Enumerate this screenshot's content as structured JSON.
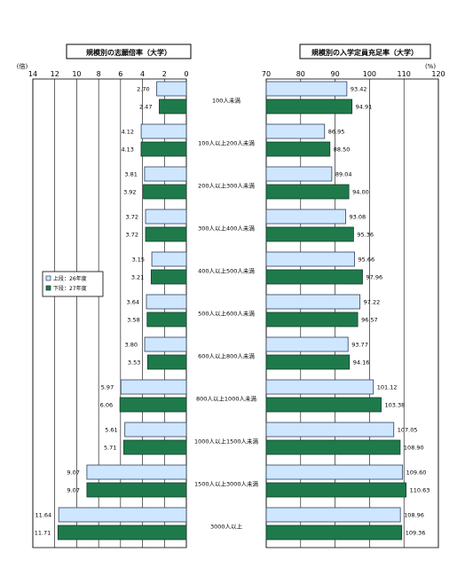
{
  "chart_data": [
    {
      "type": "bar",
      "title": "規模別の志願倍率（大学）",
      "unit_label": "(倍)",
      "orientation": "horizontal",
      "x_reversed": true,
      "xlim": [
        0,
        14
      ],
      "ticks": [
        14,
        12,
        10,
        8,
        6,
        4,
        2,
        0
      ],
      "categories": [
        "100人未満",
        "100人以上200人未満",
        "200人以上300人未満",
        "300人以上400人未満",
        "400人以上500人未満",
        "500人以上600人未満",
        "600人以上800人未満",
        "800人以上1000人未満",
        "1000人以上1500人未満",
        "1500人以上3000人未満",
        "3000人以上"
      ],
      "series": [
        {
          "name": "上段：26年度",
          "values": [
            2.7,
            4.12,
            3.81,
            3.72,
            3.15,
            3.64,
            3.8,
            5.97,
            5.61,
            9.07,
            11.64
          ]
        },
        {
          "name": "下段：27年度",
          "values": [
            2.47,
            4.13,
            3.92,
            3.72,
            3.21,
            3.58,
            3.53,
            6.06,
            5.71,
            9.07,
            11.71
          ]
        }
      ],
      "data_labels": [
        [
          "2.70",
          "4.12",
          "3.81",
          "3.72",
          "3.15",
          "3.64",
          "3.80",
          "5.97",
          "5.61",
          "9.07",
          "11.64"
        ],
        [
          "2.47",
          "4.13",
          "3.92",
          "3.72",
          "3.21",
          "3.58",
          "3.53",
          "6.06",
          "5.71",
          "9.07",
          "11.71"
        ]
      ],
      "legend_position": "left-middle"
    },
    {
      "type": "bar",
      "title": "規模別の入学定員充足率（大学）",
      "unit_label": "(%)",
      "orientation": "horizontal",
      "xlim": [
        70,
        120
      ],
      "ticks": [
        70,
        80,
        90,
        100,
        110,
        120
      ],
      "categories": [
        "100人未満",
        "100人以上200人未満",
        "200人以上300人未満",
        "300人以上400人未満",
        "400人以上500人未満",
        "500人以上600人未満",
        "600人以上800人未満",
        "800人以上1000人未満",
        "1000人以上1500人未満",
        "1500人以上3000人未満",
        "3000人以上"
      ],
      "series": [
        {
          "name": "上段：26年度",
          "values": [
            93.42,
            86.95,
            89.04,
            93.08,
            95.66,
            97.22,
            93.77,
            101.12,
            107.05,
            109.6,
            108.96
          ]
        },
        {
          "name": "下段：27年度",
          "values": [
            94.91,
            88.5,
            94.0,
            95.36,
            97.96,
            96.57,
            94.16,
            103.38,
            108.9,
            110.63,
            109.36
          ]
        }
      ],
      "data_labels": [
        [
          "93.42",
          "86.95",
          "89.04",
          "93.08",
          "95.66",
          "97.22",
          "93.77",
          "101.12",
          "107.05",
          "109.60",
          "108.96"
        ],
        [
          "94.91",
          "88.50",
          "94.00",
          "95.36",
          "97.96",
          "96.57",
          "94.16",
          "103.38",
          "108.90",
          "110.63",
          "109.36"
        ]
      ]
    }
  ],
  "colors": {
    "series_top_fill": "#cfe6ff",
    "series_top_stroke": "#2b3f5c",
    "series_bottom_fill": "#1f7a4b",
    "series_bottom_stroke": "#0f3d25",
    "grid": "#000000"
  }
}
